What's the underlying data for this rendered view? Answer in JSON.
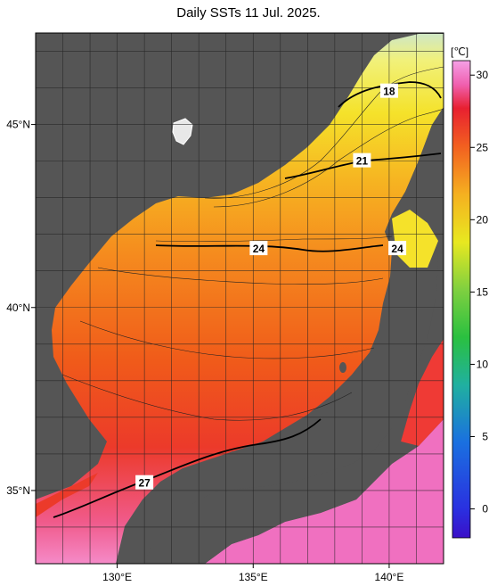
{
  "title": "Daily SSTs 11 Jul. 2025.",
  "colorbar": {
    "unit": "[℃]",
    "ticks": [
      {
        "value": 30,
        "label": "30"
      },
      {
        "value": 25,
        "label": "25"
      },
      {
        "value": 20,
        "label": "20"
      },
      {
        "value": 15,
        "label": "15"
      },
      {
        "value": 10,
        "label": "10"
      },
      {
        "value": 5,
        "label": "5"
      },
      {
        "value": 0,
        "label": "0"
      }
    ],
    "range": [
      -2,
      31
    ]
  },
  "axes": {
    "lon_range": [
      127,
      142
    ],
    "lat_range": [
      33,
      47.5
    ],
    "lon_labels": [
      {
        "value": 130,
        "label": "130°E"
      },
      {
        "value": 135,
        "label": "135°E"
      },
      {
        "value": 140,
        "label": "140°E"
      }
    ],
    "lat_labels": [
      {
        "value": 45,
        "label": "45°N"
      },
      {
        "value": 40,
        "label": "40°N"
      },
      {
        "value": 35,
        "label": "35°N"
      }
    ]
  },
  "contour_labels": [
    {
      "label": "18",
      "lon": 140.0,
      "lat": 45.9
    },
    {
      "label": "21",
      "lon": 139.0,
      "lat": 44.0
    },
    {
      "label": "24",
      "lon": 135.2,
      "lat": 41.6
    },
    {
      "label": "24",
      "lon": 140.3,
      "lat": 41.6
    },
    {
      "label": "27",
      "lon": 131.0,
      "lat": 35.2
    }
  ],
  "colors": {
    "land": "#555555",
    "background": "#ffffff"
  }
}
